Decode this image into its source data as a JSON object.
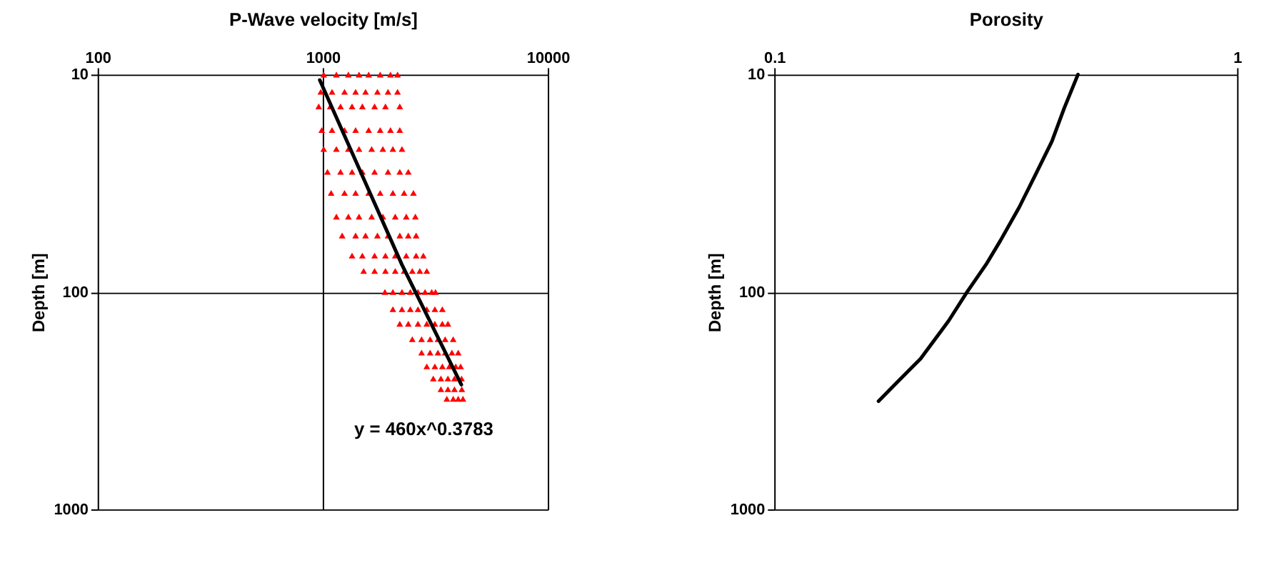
{
  "chart_data": [
    {
      "type": "scatter",
      "xlabel": "P-Wave velocity [m/s]",
      "ylabel": "Depth [m]",
      "log": "xy",
      "xlim": [
        100,
        10000
      ],
      "xticks": [
        100,
        1000,
        10000
      ],
      "ylim": [
        1000,
        10
      ],
      "yticks": [
        10,
        100,
        1000
      ],
      "grid": true,
      "annotations": [
        "y = 460x^0.3783"
      ],
      "series": [
        {
          "color": "#ff0000",
          "marker": "triangle",
          "x": [
            1010,
            1150,
            1300,
            1450,
            1600,
            1800,
            2000,
            2150,
            980,
            1100,
            1250,
            1400,
            1550,
            1750,
            1950,
            2150,
            960,
            1080,
            1200,
            1350,
            1500,
            1700,
            1900,
            2200,
            990,
            1100,
            1250,
            1400,
            1600,
            1800,
            2000,
            2200,
            1010,
            1150,
            1300,
            1450,
            1650,
            1850,
            2050,
            2250,
            1050,
            1200,
            1350,
            1500,
            1700,
            1950,
            2200,
            2400,
            1090,
            1250,
            1400,
            1600,
            1800,
            2050,
            2300,
            2530,
            1150,
            1300,
            1450,
            1650,
            1850,
            2100,
            2350,
            2580,
            1220,
            1400,
            1550,
            1750,
            1950,
            2200,
            2400,
            2600,
            1350,
            1500,
            1700,
            1900,
            2100,
            2350,
            2600,
            2800,
            1520,
            1700,
            1900,
            2100,
            2300,
            2500,
            2700,
            2900,
            1890,
            2050,
            2250,
            2450,
            2650,
            2850,
            3050,
            3170,
            2050,
            2250,
            2450,
            2650,
            2900,
            3150,
            3400,
            2200,
            2400,
            2650,
            2900,
            3150,
            3400,
            3600,
            2500,
            2750,
            3000,
            3250,
            3500,
            3800,
            2750,
            3000,
            3250,
            3500,
            3750,
            4000,
            2900,
            3150,
            3400,
            3650,
            3900,
            4100,
            3100,
            3350,
            3600,
            3850,
            4140,
            3350,
            3600,
            3850,
            4150,
            3560,
            3800,
            4000,
            4200
          ],
          "values": [
            10,
            10,
            10,
            10,
            10,
            10,
            10,
            10,
            12,
            12,
            12,
            12,
            12,
            12,
            12,
            12,
            14,
            14,
            14,
            14,
            14,
            14,
            14,
            14,
            18,
            18,
            18,
            18,
            18,
            18,
            18,
            18,
            22,
            22,
            22,
            22,
            22,
            22,
            22,
            22,
            28,
            28,
            28,
            28,
            28,
            28,
            28,
            28,
            35,
            35,
            35,
            35,
            35,
            35,
            35,
            35,
            45,
            45,
            45,
            45,
            45,
            45,
            45,
            45,
            55,
            55,
            55,
            55,
            55,
            55,
            55,
            55,
            68,
            68,
            68,
            68,
            68,
            68,
            68,
            68,
            80,
            80,
            80,
            80,
            80,
            80,
            80,
            80,
            100,
            100,
            100,
            100,
            100,
            100,
            100,
            100,
            120,
            120,
            120,
            120,
            120,
            120,
            120,
            140,
            140,
            140,
            140,
            140,
            140,
            140,
            165,
            165,
            165,
            165,
            165,
            165,
            190,
            190,
            190,
            190,
            190,
            190,
            220,
            220,
            220,
            220,
            220,
            220,
            250,
            250,
            250,
            250,
            250,
            280,
            280,
            280,
            280,
            310,
            310,
            310,
            310
          ]
        },
        {
          "type": "line",
          "color": "#000000",
          "marker": "none",
          "x": [
            970,
            2250,
            4130
          ],
          "values": [
            10.6,
            75,
            267
          ]
        }
      ]
    },
    {
      "type": "line",
      "xlabel": "Porosity",
      "ylabel": "Depth [m]",
      "log": "xy",
      "xlim": [
        0.1,
        1
      ],
      "xticks": [
        0.1,
        1
      ],
      "ylim": [
        1000,
        10
      ],
      "yticks": [
        10,
        100,
        1000
      ],
      "grid": true,
      "series": [
        {
          "color": "#000000",
          "marker": "none",
          "x": [
            0.453,
            0.423,
            0.398,
            0.367,
            0.338,
            0.308,
            0.287,
            0.261,
            0.238,
            0.207,
            0.184,
            0.168
          ],
          "values": [
            10,
            14.3,
            20.3,
            28.8,
            40.9,
            58.1,
            74.6,
            100,
            136,
            203,
            261,
            318
          ]
        }
      ]
    }
  ]
}
